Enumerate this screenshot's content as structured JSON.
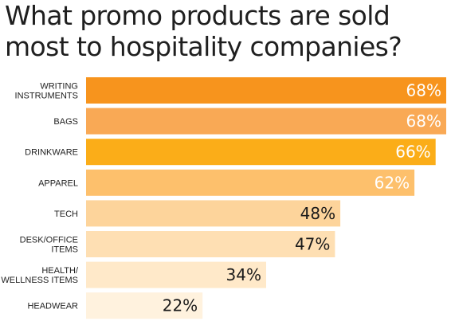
{
  "chart_data": {
    "type": "bar",
    "orientation": "horizontal",
    "title": "What promo products are sold most to hospitality companies?",
    "categories": [
      [
        "WRITING",
        "INSTRUMENTS"
      ],
      [
        "BAGS"
      ],
      [
        "DRINKWARE"
      ],
      [
        "APPAREL"
      ],
      [
        "TECH"
      ],
      [
        "DESK/OFFICE",
        "ITEMS"
      ],
      [
        "HEALTH/",
        "WELLNESS ITEMS"
      ],
      [
        "HEADWEAR"
      ]
    ],
    "values": [
      68,
      68,
      66,
      62,
      48,
      47,
      34,
      22
    ],
    "value_labels": [
      "68%",
      "68%",
      "66%",
      "62%",
      "48%",
      "47%",
      "34%",
      "22%"
    ],
    "unit": "%",
    "xlim": [
      0,
      70
    ],
    "bar_colors": [
      "#f7941d",
      "#f9a955",
      "#fbad18",
      "#fdc06c",
      "#fdd49b",
      "#fedfb3",
      "#ffe9c9",
      "#fff2de"
    ],
    "label_colors": [
      "#ffffff",
      "#ffffff",
      "#ffffff",
      "#ffffff",
      "#1a1a1a",
      "#1a1a1a",
      "#1a1a1a",
      "#1a1a1a"
    ],
    "grid": false,
    "legend": "none"
  }
}
